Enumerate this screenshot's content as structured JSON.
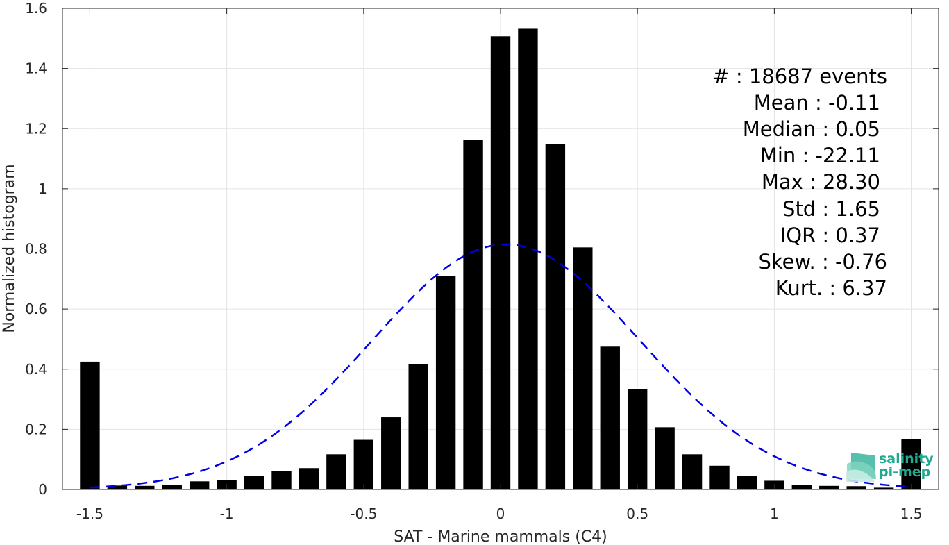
{
  "chart_data": {
    "type": "bar",
    "xlabel": "SAT - Marine mammals (C4)",
    "ylabel": "Normalized histogram",
    "xlim": [
      -1.6,
      1.6
    ],
    "ylim": [
      0,
      1.6
    ],
    "xticks": [
      -1.5,
      -1,
      -0.5,
      0,
      0.5,
      1,
      1.5
    ],
    "xtick_labels": [
      "-1.5",
      "-1",
      "-0.5",
      "0",
      "0.5",
      "1",
      "1.5"
    ],
    "yticks": [
      0,
      0.2,
      0.4,
      0.6,
      0.8,
      1,
      1.2,
      1.4,
      1.6
    ],
    "ytick_labels": [
      "0",
      "0.2",
      "0.4",
      "0.6",
      "0.8",
      "1",
      "1.2",
      "1.4",
      "1.6"
    ],
    "grid": true,
    "bar_color": "#000000",
    "x": [
      -1.5,
      -1.4,
      -1.3,
      -1.2,
      -1.1,
      -1.0,
      -0.9,
      -0.8,
      -0.7,
      -0.6,
      -0.5,
      -0.4,
      -0.3,
      -0.2,
      -0.1,
      0.0,
      0.1,
      0.2,
      0.3,
      0.4,
      0.5,
      0.6,
      0.7,
      0.8,
      0.9,
      1.0,
      1.1,
      1.2,
      1.3,
      1.4,
      1.5
    ],
    "values": [
      0.425,
      0.013,
      0.012,
      0.015,
      0.027,
      0.032,
      0.046,
      0.061,
      0.071,
      0.117,
      0.165,
      0.24,
      0.417,
      0.711,
      1.162,
      1.507,
      1.532,
      1.148,
      0.805,
      0.475,
      0.333,
      0.207,
      0.117,
      0.079,
      0.045,
      0.029,
      0.016,
      0.012,
      0.011,
      0.006,
      0.168
    ],
    "fit_curve": {
      "mean": 0.02,
      "peak": 0.815,
      "std": 0.49,
      "color": "#0000e6",
      "style": "dashed"
    },
    "annotations": [
      "#  : 18687 events",
      "Mean : -0.11",
      "Median : 0.05",
      "Min : -22.11",
      "Max : 28.30",
      "Std : 1.65",
      "IQR : 0.37",
      "Skew. : -0.76",
      "Kurt. : 6.37"
    ]
  },
  "logo": {
    "line1": "salinity",
    "line2": "pi-mep",
    "color": "#1fa98f"
  }
}
